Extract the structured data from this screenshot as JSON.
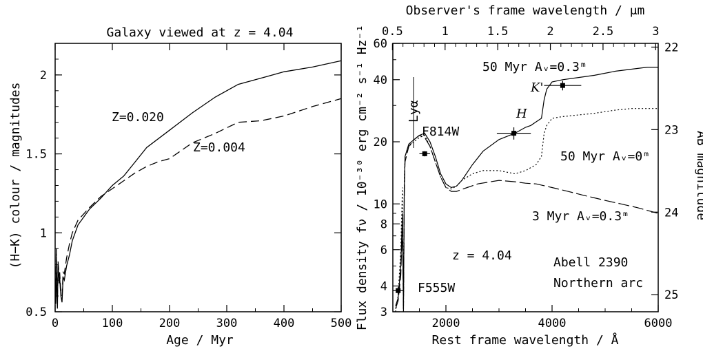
{
  "chart_data": [
    {
      "type": "line",
      "title": "Galaxy viewed at z = 4.04",
      "xlabel": "Age / Myr",
      "ylabel": "(H−K) colour / magnitudes",
      "xlim": [
        0,
        500
      ],
      "ylim": [
        0.5,
        2.2
      ],
      "xticks": [
        0,
        100,
        200,
        300,
        400,
        500
      ],
      "xtick_labels": [
        "0",
        "100",
        "200",
        "300",
        "400",
        "500"
      ],
      "yticks": [
        0.5,
        1,
        1.5,
        2
      ],
      "ytick_labels": [
        "0.5",
        "1",
        "1.5",
        "2"
      ],
      "series": [
        {
          "name": "Z=0.020",
          "style": "solid",
          "x": [
            1,
            2,
            3,
            4,
            5,
            6,
            7,
            8,
            9,
            10,
            12,
            14,
            16,
            20,
            25,
            30,
            40,
            50,
            60,
            80,
            100,
            120,
            140,
            160,
            200,
            240,
            280,
            320,
            360,
            400,
            450,
            500
          ],
          "y": [
            0.55,
            0.85,
            0.6,
            0.52,
            0.8,
            0.75,
            0.68,
            0.72,
            0.65,
            0.6,
            0.56,
            0.72,
            0.7,
            0.79,
            0.86,
            0.95,
            1.05,
            1.1,
            1.15,
            1.22,
            1.3,
            1.36,
            1.45,
            1.54,
            1.65,
            1.76,
            1.86,
            1.94,
            1.98,
            2.02,
            2.05,
            2.09
          ]
        },
        {
          "name": "Z=0.004",
          "style": "dashed",
          "x": [
            1,
            2,
            3,
            4,
            5,
            6,
            7,
            8,
            9,
            10,
            12,
            14,
            16,
            20,
            25,
            30,
            40,
            50,
            60,
            80,
            100,
            120,
            140,
            160,
            180,
            200,
            240,
            280,
            320,
            360,
            400,
            450,
            500
          ],
          "y": [
            0.58,
            0.9,
            0.65,
            0.55,
            0.82,
            0.78,
            0.7,
            0.75,
            0.68,
            0.63,
            0.6,
            0.75,
            0.74,
            0.84,
            0.93,
            1.0,
            1.08,
            1.12,
            1.16,
            1.23,
            1.28,
            1.33,
            1.38,
            1.42,
            1.45,
            1.47,
            1.57,
            1.63,
            1.7,
            1.71,
            1.74,
            1.8,
            1.85
          ]
        }
      ],
      "annotations": [
        "Z=0.020",
        "Z=0.004"
      ]
    },
    {
      "type": "line",
      "title": "",
      "xlabel": "Rest frame wavelength / Å",
      "x2label": "Observer's frame wavelength / μm",
      "ylabel": "Flux density fν / 10⁻³⁰ erg cm⁻² s⁻¹ Hz⁻¹",
      "y2label": "AB magnitude",
      "xlim": [
        1000,
        6000
      ],
      "ylim": [
        3,
        60
      ],
      "y_scale": "log",
      "xticks": [
        2000,
        4000,
        6000
      ],
      "xtick_labels": [
        "2000",
        "4000",
        "6000"
      ],
      "x2ticks": [
        0.5,
        1,
        1.5,
        2,
        2.5,
        3
      ],
      "x2tick_labels": [
        "0.5",
        "1",
        "1.5",
        "2",
        "2.5",
        "3"
      ],
      "yticks": [
        3,
        4,
        6,
        8,
        10,
        20,
        40,
        60
      ],
      "ytick_labels": [
        "3",
        "4",
        "6",
        "8",
        "10",
        "20",
        "40",
        "60"
      ],
      "y2ticks": [
        22,
        23,
        24,
        25
      ],
      "y2tick_labels": [
        "22",
        "23",
        "24",
        "25"
      ],
      "series": [
        {
          "name": "50 Myr Av=0.3m",
          "style": "solid",
          "x": [
            1050,
            1100,
            1150,
            1180,
            1200,
            1216,
            1230,
            1300,
            1400,
            1500,
            1600,
            1700,
            1800,
            1900,
            2000,
            2100,
            2200,
            2300,
            2500,
            2700,
            3000,
            3300,
            3500,
            3600,
            3700,
            3800,
            3850,
            3900,
            4000,
            4200,
            4500,
            4800,
            5000,
            5200,
            5500,
            5800,
            6000
          ],
          "y": [
            3.2,
            3.5,
            5.0,
            9.0,
            3.1,
            12.0,
            17.0,
            19.5,
            20.5,
            21.5,
            22.0,
            20.0,
            17.0,
            14.0,
            12.5,
            12.0,
            12.2,
            13.0,
            15.5,
            18.0,
            20.5,
            22.0,
            23.5,
            24.0,
            25.0,
            26.0,
            32.0,
            36.0,
            39.0,
            40.0,
            41.0,
            42.0,
            43.0,
            44.0,
            45.0,
            46.0,
            46.0
          ]
        },
        {
          "name": "50 Myr Av=0m",
          "style": "dotted",
          "x": [
            1050,
            1100,
            1150,
            1180,
            1200,
            1216,
            1230,
            1300,
            1400,
            1500,
            1600,
            1700,
            1800,
            1900,
            2000,
            2100,
            2200,
            2300,
            2500,
            2700,
            3000,
            3300,
            3500,
            3600,
            3700,
            3800,
            3850,
            3900,
            4000,
            4200,
            4500,
            4800,
            5000,
            5200,
            5500,
            5800,
            6000
          ],
          "y": [
            3.0,
            3.6,
            6.0,
            12.0,
            3.0,
            13.0,
            17.0,
            19.0,
            20.0,
            21.0,
            21.5,
            19.0,
            16.0,
            13.5,
            12.0,
            11.8,
            12.2,
            13.0,
            14.0,
            14.5,
            14.5,
            14.0,
            14.5,
            15.0,
            15.5,
            17.0,
            22.0,
            24.0,
            26.0,
            26.5,
            27.0,
            27.5,
            28.0,
            28.5,
            29.0,
            29.0,
            29.0
          ]
        },
        {
          "name": "3 Myr Av=0.3m",
          "style": "dash",
          "x": [
            1050,
            1100,
            1150,
            1180,
            1200,
            1216,
            1230,
            1300,
            1400,
            1500,
            1600,
            1700,
            1800,
            1900,
            2000,
            2100,
            2200,
            2400,
            2600,
            3000,
            3300,
            3500,
            3700,
            4000,
            4300,
            4600,
            4800,
            5000,
            5300,
            5600,
            6000
          ],
          "y": [
            3.1,
            3.4,
            4.5,
            8.0,
            3.0,
            11.0,
            16.0,
            19.0,
            20.5,
            21.5,
            21.0,
            19.0,
            16.0,
            13.5,
            12.0,
            11.5,
            11.5,
            12.0,
            12.5,
            13.0,
            12.8,
            12.6,
            12.5,
            12.0,
            11.5,
            11.0,
            10.7,
            10.4,
            10.0,
            9.6,
            9.0
          ]
        }
      ],
      "photometry": [
        {
          "name": "F555W",
          "x": 1100,
          "y": 3.8,
          "xerr": 100,
          "yerr": 0.15
        },
        {
          "name": "F814W",
          "x": 1600,
          "y": 17.5,
          "xerr": 100,
          "yerr": 0.5
        },
        {
          "name": "H",
          "x": 3280,
          "y": 22.0,
          "xerr": 320,
          "yerr": 1.5
        },
        {
          "name": "K'",
          "x": 4200,
          "y": 37.5,
          "xerr": 350,
          "yerr": 2.0
        }
      ],
      "annotations": [
        "Lyα",
        "F814W",
        "H",
        "K'",
        "F555W",
        "50 Myr Aᵥ=0.3ᵐ",
        "50 Myr Aᵥ=0ᵐ",
        "3 Myr Aᵥ=0.3ᵐ",
        "z = 4.04",
        "Abell 2390",
        "Northern arc"
      ]
    }
  ]
}
